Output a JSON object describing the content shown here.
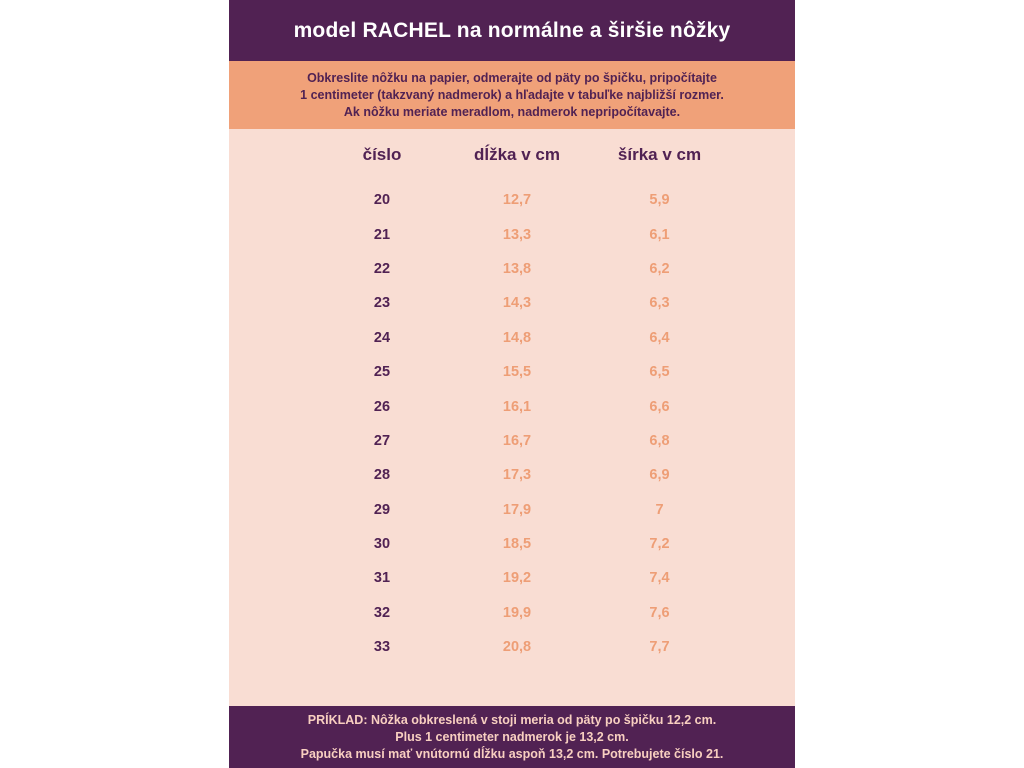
{
  "header": {
    "title": "model RACHEL na normálne a širšie nôžky"
  },
  "instructions": {
    "lines": [
      "Obkreslite nôžku na papier, odmerajte od päty po špičku, pripočítajte",
      "1 centimeter (takzvaný nadmerok) a hľadajte v tabuľke najbližší rozmer.",
      "Ak nôžku meriate meradlom, nadmerok nepripočítavajte."
    ]
  },
  "chart_data": {
    "type": "table",
    "columns": [
      "číslo",
      "dĺžka v cm",
      "šírka v cm"
    ],
    "rows": [
      [
        "20",
        "12,7",
        "5,9"
      ],
      [
        "21",
        "13,3",
        "6,1"
      ],
      [
        "22",
        "13,8",
        "6,2"
      ],
      [
        "23",
        "14,3",
        "6,3"
      ],
      [
        "24",
        "14,8",
        "6,4"
      ],
      [
        "25",
        "15,5",
        "6,5"
      ],
      [
        "26",
        "16,1",
        "6,6"
      ],
      [
        "27",
        "16,7",
        "6,8"
      ],
      [
        "28",
        "17,3",
        "6,9"
      ],
      [
        "29",
        "17,9",
        "7"
      ],
      [
        "30",
        "18,5",
        "7,2"
      ],
      [
        "31",
        "19,2",
        "7,4"
      ],
      [
        "32",
        "19,9",
        "7,6"
      ],
      [
        "33",
        "20,8",
        "7,7"
      ]
    ]
  },
  "footer": {
    "lines": [
      "PRÍKLAD: Nôžka obkreslená v stoji meria od päty po špičku 12,2 cm.",
      "Plus 1 centimeter nadmerok je 13,2 cm.",
      "Papučka musí mať vnútornú dĺžku aspoň 13,2 cm. Potrebujete číslo 21."
    ]
  },
  "colors": {
    "purple": "#512253",
    "salmon": "#f0a179",
    "pink_background": "#f9ddd3",
    "value_text": "#ee9e76",
    "footer_text": "#f8cfc0"
  }
}
